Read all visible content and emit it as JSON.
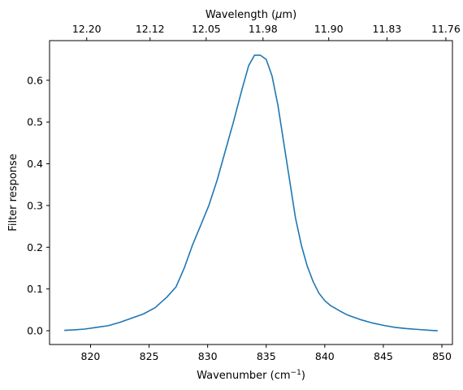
{
  "chart_data": {
    "type": "line",
    "title": "",
    "xlabel": "Wavenumber (cm",
    "xlabel_sup": "−1",
    "xlabel_end": ")",
    "ylabel": "Filter response",
    "top_xlabel_prefix": "Wavelength (",
    "top_xlabel_mu": "μ",
    "top_xlabel_suffix": "m)",
    "xlim": [
      816.5,
      850.9
    ],
    "ylim": [
      -0.033,
      0.695
    ],
    "xticks": [
      820,
      825,
      830,
      835,
      840,
      845,
      850
    ],
    "xtick_labels": [
      "820",
      "825",
      "830",
      "835",
      "840",
      "845",
      "850"
    ],
    "yticks": [
      0.0,
      0.1,
      0.2,
      0.3,
      0.4,
      0.5,
      0.6
    ],
    "ytick_labels": [
      "0.0",
      "0.1",
      "0.2",
      "0.3",
      "0.4",
      "0.5",
      "0.6"
    ],
    "top_ticks_wavelength_um": [
      12.2,
      12.12,
      12.05,
      11.98,
      11.9,
      11.83,
      11.76
    ],
    "top_tick_labels": [
      "12.20",
      "12.12",
      "12.05",
      "11.98",
      "11.90",
      "11.83",
      "11.76"
    ],
    "grid": false,
    "legend": "none",
    "series": [
      {
        "color": "#1f77b4",
        "x": [
          817.8,
          818.5,
          819.5,
          820.5,
          821.5,
          822.5,
          823.5,
          824.5,
          825.5,
          826.5,
          827.3,
          828.0,
          828.7,
          829.4,
          830.1,
          830.8,
          831.5,
          832.2,
          832.9,
          833.5,
          834.0,
          834.5,
          835.0,
          835.5,
          836.0,
          836.5,
          837.0,
          837.5,
          838.0,
          838.5,
          839.0,
          839.5,
          840.0,
          840.5,
          841.0,
          841.5,
          842.0,
          843.0,
          844.0,
          845.0,
          846.0,
          847.0,
          848.0,
          849.0,
          849.6
        ],
        "y": [
          0.001,
          0.002,
          0.004,
          0.008,
          0.012,
          0.02,
          0.03,
          0.04,
          0.055,
          0.08,
          0.105,
          0.15,
          0.205,
          0.252,
          0.3,
          0.36,
          0.43,
          0.5,
          0.575,
          0.635,
          0.66,
          0.66,
          0.65,
          0.61,
          0.54,
          0.45,
          0.36,
          0.27,
          0.205,
          0.155,
          0.118,
          0.09,
          0.072,
          0.06,
          0.052,
          0.044,
          0.037,
          0.027,
          0.019,
          0.013,
          0.008,
          0.005,
          0.003,
          0.001,
          0.0
        ]
      }
    ]
  }
}
